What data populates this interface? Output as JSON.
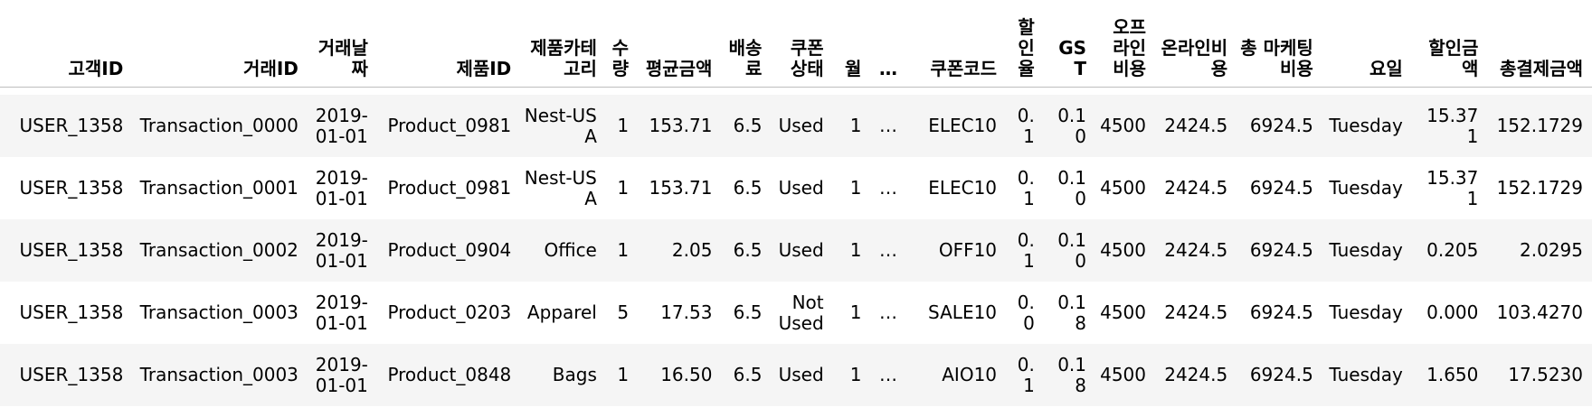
{
  "table": {
    "columns": [
      "고객ID",
      "거래ID",
      "거래날짜",
      "제품ID",
      "제품카테고리",
      "수량",
      "평균금액",
      "배송료",
      "쿠폰상태",
      "월",
      "…",
      "쿠폰코드",
      "할인율",
      "GST",
      "오프라인비용",
      "온라인비용",
      "총 마케팅비용",
      "요일",
      "할인금액",
      "총결제금액"
    ],
    "rows": [
      [
        "USER_1358",
        "Transaction_0000",
        "2019-01-01",
        "Product_0981",
        "Nest-USA",
        "1",
        "153.71",
        "6.5",
        "Used",
        "1",
        "…",
        "ELEC10",
        "0.1",
        "0.10",
        "4500",
        "2424.5",
        "6924.5",
        "Tuesday",
        "15.371",
        "152.1729"
      ],
      [
        "USER_1358",
        "Transaction_0001",
        "2019-01-01",
        "Product_0981",
        "Nest-USA",
        "1",
        "153.71",
        "6.5",
        "Used",
        "1",
        "…",
        "ELEC10",
        "0.1",
        "0.10",
        "4500",
        "2424.5",
        "6924.5",
        "Tuesday",
        "15.371",
        "152.1729"
      ],
      [
        "USER_1358",
        "Transaction_0002",
        "2019-01-01",
        "Product_0904",
        "Office",
        "1",
        "2.05",
        "6.5",
        "Used",
        "1",
        "…",
        "OFF10",
        "0.1",
        "0.10",
        "4500",
        "2424.5",
        "6924.5",
        "Tuesday",
        "0.205",
        "2.0295"
      ],
      [
        "USER_1358",
        "Transaction_0003",
        "2019-01-01",
        "Product_0203",
        "Apparel",
        "5",
        "17.53",
        "6.5",
        "Not Used",
        "1",
        "…",
        "SALE10",
        "0.0",
        "0.18",
        "4500",
        "2424.5",
        "6924.5",
        "Tuesday",
        "0.000",
        "103.4270"
      ],
      [
        "USER_1358",
        "Transaction_0003",
        "2019-01-01",
        "Product_0848",
        "Bags",
        "1",
        "16.50",
        "6.5",
        "Used",
        "1",
        "…",
        "AIO10",
        "0.1",
        "0.18",
        "4500",
        "2424.5",
        "6924.5",
        "Tuesday",
        "1.650",
        "17.5230"
      ]
    ]
  }
}
